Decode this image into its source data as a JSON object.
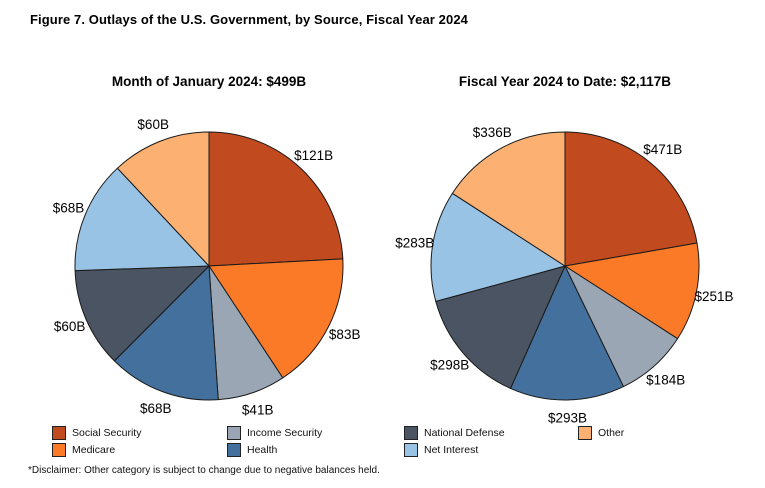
{
  "figure": {
    "title": "Figure 7. Outlays of the U.S. Government, by Source, Fiscal Year 2024",
    "disclaimer": "*Disclaimer: Other category is subject to change due to negative balances held."
  },
  "colors": {
    "slice_outline": "#1a1a1a",
    "background": "#ffffff",
    "text": "#000000"
  },
  "chart_data": [
    {
      "type": "pie",
      "title": "Month of January 2024: $499B",
      "period": "Month of January 2024",
      "total_label": "$499B",
      "start_angle": "12 o'clock, clockwise",
      "categories": [
        "Social Security",
        "Medicare",
        "Income Security",
        "Health",
        "National Defense",
        "Net Interest",
        "Other"
      ],
      "values": [
        121,
        83,
        41,
        68,
        60,
        68,
        60
      ],
      "labels": [
        "$121B",
        "$83B",
        "$41B",
        "$68B",
        "$60B",
        "$68B",
        "$60B"
      ]
    },
    {
      "type": "pie",
      "title": "Fiscal Year 2024 to Date: $2,117B",
      "period": "Fiscal Year 2024 to Date",
      "total_label": "$2,117B",
      "start_angle": "12 o'clock, clockwise",
      "categories": [
        "Social Security",
        "Medicare",
        "Income Security",
        "Health",
        "National Defense",
        "Net Interest",
        "Other"
      ],
      "values": [
        471,
        251,
        184,
        293,
        298,
        283,
        336
      ],
      "labels": [
        "$471B",
        "$251B",
        "$184B",
        "$293B",
        "$298B",
        "$283B",
        "$336B"
      ]
    }
  ],
  "legend": {
    "items": [
      {
        "label": "Social Security",
        "color": "#C14A1E"
      },
      {
        "label": "Medicare",
        "color": "#FB7A28"
      },
      {
        "label": "Income Security",
        "color": "#9BA6B4"
      },
      {
        "label": "Health",
        "color": "#44709D"
      },
      {
        "label": "National Defense",
        "color": "#4A5462"
      },
      {
        "label": "Net Interest",
        "color": "#99C3E5"
      },
      {
        "label": "Other",
        "color": "#FCB172"
      }
    ]
  }
}
